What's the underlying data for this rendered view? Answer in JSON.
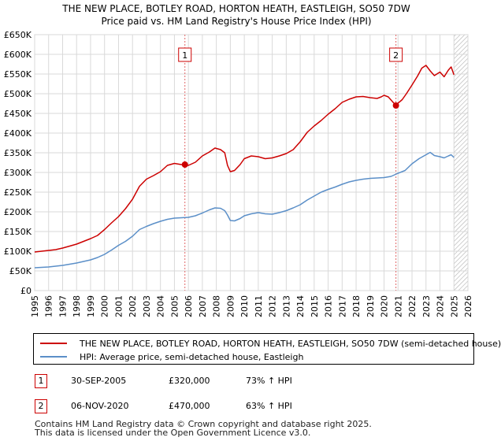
{
  "header": {
    "title_line1": "THE NEW PLACE, BOTLEY ROAD, HORTON HEATH, EASTLEIGH, SO50 7DW",
    "title_line2": "Price paid vs. HM Land Registry's House Price Index (HPI)"
  },
  "chart_data": {
    "type": "line",
    "title": "THE NEW PLACE, BOTLEY ROAD, HORTON HEATH, EASTLEIGH, SO50 7DW - Price paid vs. HM Land Registry's House Price Index (HPI)",
    "xlabel": "",
    "ylabel": "",
    "xlim": [
      1995,
      2026
    ],
    "ylim": [
      0,
      650000
    ],
    "y_ticks": [
      0,
      50000,
      100000,
      150000,
      200000,
      250000,
      300000,
      350000,
      400000,
      450000,
      500000,
      550000,
      600000,
      650000
    ],
    "y_tick_labels": [
      "£0",
      "£50K",
      "£100K",
      "£150K",
      "£200K",
      "£250K",
      "£300K",
      "£350K",
      "£400K",
      "£450K",
      "£500K",
      "£550K",
      "£600K",
      "£650K"
    ],
    "x_ticks": [
      1995,
      1996,
      1997,
      1998,
      1999,
      2000,
      2001,
      2002,
      2003,
      2004,
      2005,
      2006,
      2007,
      2008,
      2009,
      2010,
      2011,
      2012,
      2013,
      2014,
      2015,
      2016,
      2017,
      2018,
      2019,
      2020,
      2021,
      2022,
      2023,
      2024,
      2025,
      2026
    ],
    "x_tick_labels": [
      "1995",
      "1996",
      "1997",
      "1998",
      "1999",
      "2000",
      "2001",
      "2002",
      "2003",
      "2004",
      "2005",
      "2006",
      "2007",
      "2008",
      "2009",
      "2010",
      "2011",
      "2012",
      "2013",
      "2014",
      "2015",
      "2016",
      "2017",
      "2018",
      "2019",
      "2020",
      "2021",
      "2022",
      "2023",
      "2024",
      "2025",
      "2026"
    ],
    "grid": true,
    "hatched_from_year": 2025.0,
    "series": [
      {
        "name": "THE NEW PLACE, BOTLEY ROAD, HORTON HEATH, EASTLEIGH, SO50 7DW (semi-detached house)",
        "color": "#cc0000",
        "x": [
          1995.0,
          1995.5,
          1996.0,
          1996.5,
          1997.0,
          1997.5,
          1998.0,
          1998.5,
          1999.0,
          1999.5,
          2000.0,
          2000.5,
          2001.0,
          2001.5,
          2002.0,
          2002.5,
          2003.0,
          2003.5,
          2004.0,
          2004.5,
          2005.0,
          2005.5,
          2005.75,
          2006.0,
          2006.5,
          2007.0,
          2007.5,
          2007.9,
          2008.3,
          2008.6,
          2008.8,
          2009.0,
          2009.3,
          2009.7,
          2010.0,
          2010.5,
          2011.0,
          2011.5,
          2012.0,
          2012.5,
          2013.0,
          2013.5,
          2014.0,
          2014.5,
          2015.0,
          2015.5,
          2016.0,
          2016.5,
          2017.0,
          2017.5,
          2018.0,
          2018.5,
          2019.0,
          2019.5,
          2019.8,
          2020.0,
          2020.3,
          2020.6,
          2020.85,
          2021.0,
          2021.3,
          2021.6,
          2022.0,
          2022.4,
          2022.7,
          2023.0,
          2023.3,
          2023.6,
          2024.0,
          2024.3,
          2024.6,
          2024.8,
          2025.0
        ],
        "y": [
          98000,
          100000,
          102000,
          104000,
          108000,
          113000,
          118000,
          125000,
          132000,
          140000,
          155000,
          172000,
          188000,
          208000,
          232000,
          265000,
          283000,
          292000,
          302000,
          318000,
          323000,
          320000,
          320000,
          318000,
          326000,
          342000,
          352000,
          362000,
          358000,
          350000,
          318000,
          302000,
          305000,
          320000,
          335000,
          342000,
          340000,
          335000,
          337000,
          342000,
          348000,
          358000,
          378000,
          402000,
          418000,
          432000,
          448000,
          462000,
          478000,
          486000,
          492000,
          493000,
          490000,
          488000,
          492000,
          496000,
          492000,
          480000,
          470000,
          476000,
          485000,
          500000,
          522000,
          545000,
          565000,
          572000,
          558000,
          546000,
          555000,
          543000,
          560000,
          568000,
          548000
        ]
      },
      {
        "name": "HPI: Average price, semi-detached house, Eastleigh",
        "color": "#5b8fc8",
        "x": [
          1995.0,
          1995.5,
          1996.0,
          1996.5,
          1997.0,
          1997.5,
          1998.0,
          1998.5,
          1999.0,
          1999.5,
          2000.0,
          2000.5,
          2001.0,
          2001.5,
          2002.0,
          2002.5,
          2003.0,
          2003.5,
          2004.0,
          2004.5,
          2005.0,
          2005.5,
          2006.0,
          2006.5,
          2007.0,
          2007.5,
          2007.9,
          2008.3,
          2008.6,
          2008.8,
          2009.0,
          2009.3,
          2009.7,
          2010.0,
          2010.5,
          2011.0,
          2011.5,
          2012.0,
          2012.5,
          2013.0,
          2013.5,
          2014.0,
          2014.5,
          2015.0,
          2015.5,
          2016.0,
          2016.5,
          2017.0,
          2017.5,
          2018.0,
          2018.5,
          2019.0,
          2019.5,
          2020.0,
          2020.5,
          2021.0,
          2021.5,
          2022.0,
          2022.5,
          2023.0,
          2023.3,
          2023.6,
          2024.0,
          2024.3,
          2024.6,
          2024.8,
          2025.0
        ],
        "y": [
          58000,
          59000,
          60000,
          62000,
          64000,
          67000,
          70000,
          74000,
          78000,
          84000,
          92000,
          103000,
          115000,
          125000,
          138000,
          155000,
          163000,
          170000,
          176000,
          181000,
          184000,
          185000,
          186000,
          190000,
          197000,
          205000,
          210000,
          209000,
          203000,
          192000,
          178000,
          177000,
          183000,
          190000,
          195000,
          198000,
          195000,
          194000,
          198000,
          203000,
          210000,
          218000,
          230000,
          240000,
          250000,
          257000,
          263000,
          270000,
          276000,
          280000,
          283000,
          285000,
          286000,
          287000,
          290000,
          298000,
          305000,
          322000,
          335000,
          345000,
          351000,
          343000,
          340000,
          337000,
          342000,
          345000,
          338000
        ]
      }
    ],
    "annotations": [
      {
        "label": "1",
        "x": 2005.75,
        "y": 320000
      },
      {
        "label": "2",
        "x": 2020.85,
        "y": 470000
      }
    ]
  },
  "legend": {
    "items": [
      {
        "label": "THE NEW PLACE, BOTLEY ROAD, HORTON HEATH, EASTLEIGH, SO50 7DW (semi-detached house)",
        "color": "#cc0000"
      },
      {
        "label": "HPI: Average price, semi-detached house, Eastleigh",
        "color": "#5b8fc8"
      }
    ]
  },
  "transactions": [
    {
      "num": "1",
      "date": "30-SEP-2005",
      "price": "£320,000",
      "hpi": "73% ↑ HPI"
    },
    {
      "num": "2",
      "date": "06-NOV-2020",
      "price": "£470,000",
      "hpi": "63% ↑ HPI"
    }
  ],
  "footer": {
    "line1": "Contains HM Land Registry data © Crown copyright and database right 2025.",
    "line2": "This data is licensed under the Open Government Licence v3.0."
  }
}
